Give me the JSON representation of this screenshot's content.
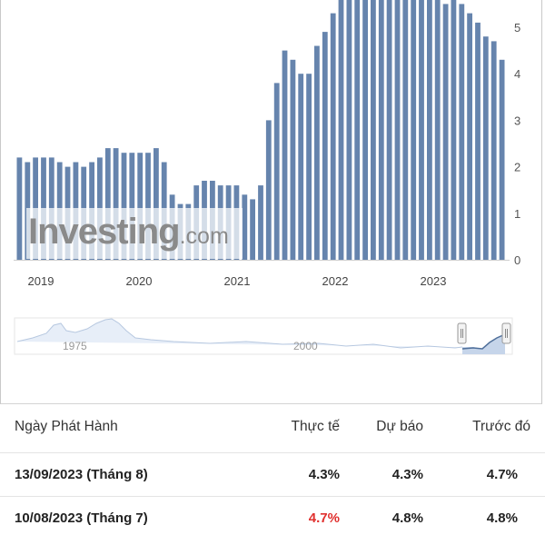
{
  "chart_data": {
    "type": "bar",
    "x_tick_labels": [
      "2019",
      "2020",
      "2021",
      "2022",
      "2023"
    ],
    "y_tick_labels": [
      "0",
      "1",
      "2",
      "3",
      "4",
      "5"
    ],
    "ylim": [
      0,
      5.6
    ],
    "values": [
      2.2,
      2.1,
      2.2,
      2.2,
      2.2,
      2.1,
      2.0,
      2.1,
      2.0,
      2.1,
      2.2,
      2.4,
      2.4,
      2.3,
      2.3,
      2.3,
      2.3,
      2.4,
      2.1,
      1.4,
      1.2,
      1.2,
      1.6,
      1.7,
      1.7,
      1.6,
      1.6,
      1.6,
      1.4,
      1.3,
      1.6,
      3.0,
      3.8,
      4.5,
      4.3,
      4.0,
      4.0,
      4.6,
      4.9,
      5.3,
      5.6,
      5.6,
      5.6,
      5.6,
      5.6,
      5.6,
      5.6,
      5.6,
      5.6,
      5.6,
      5.6,
      5.6,
      5.6,
      5.5,
      5.6,
      5.5,
      5.3,
      5.1,
      4.8,
      4.7,
      4.3
    ],
    "bar_color": "#6684ad",
    "navigator": {
      "labels": [
        "1975",
        "2000"
      ]
    },
    "watermark": {
      "brand": "Investing",
      "suffix": ".com"
    }
  },
  "table": {
    "headers": {
      "date": "Ngày Phát Hành",
      "actual": "Thực tế",
      "forecast": "Dự báo",
      "previous": "Trước đó"
    },
    "rows": [
      {
        "date": "13/09/2023 (Tháng 8)",
        "actual": "4.3%",
        "forecast": "4.3%",
        "previous": "4.7%",
        "actual_color": "#222222"
      },
      {
        "date": "10/08/2023 (Tháng 7)",
        "actual": "4.7%",
        "forecast": "4.8%",
        "previous": "4.8%",
        "actual_color": "#e0302e"
      }
    ]
  }
}
